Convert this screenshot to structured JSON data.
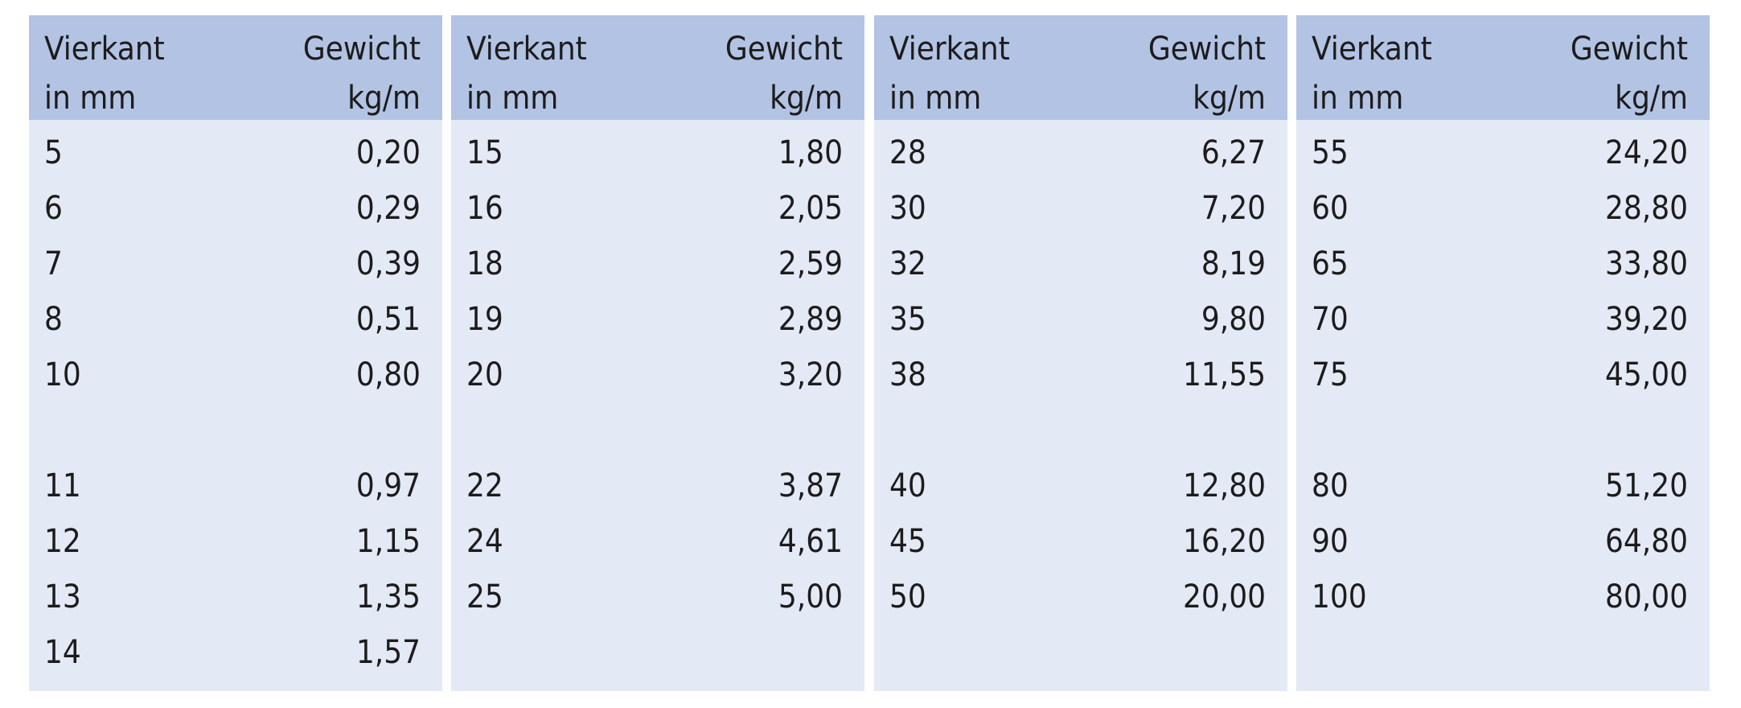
{
  "panels": [
    {
      "header": [
        [
          "Vierkant",
          "in mm"
        ],
        [
          "Gewicht",
          "kg/m"
        ]
      ],
      "groups": [
        [
          [
            "5",
            "0,20"
          ],
          [
            "6",
            "0,29"
          ],
          [
            "7",
            "0,39"
          ],
          [
            "8",
            "0,51"
          ],
          [
            "10",
            "0,80"
          ]
        ],
        [
          [
            "11",
            "0,97"
          ],
          [
            "12",
            "1,15"
          ],
          [
            "13",
            "1,35"
          ],
          [
            "14",
            "1,57"
          ]
        ]
      ]
    },
    {
      "header": [
        [
          "Vierkant",
          "in mm"
        ],
        [
          "Gewicht",
          "kg/m"
        ]
      ],
      "groups": [
        [
          [
            "15",
            "1,80"
          ],
          [
            "16",
            "2,05"
          ],
          [
            "18",
            "2,59"
          ],
          [
            "19",
            "2,89"
          ],
          [
            "20",
            "3,20"
          ]
        ],
        [
          [
            "22",
            "3,87"
          ],
          [
            "24",
            "4,61"
          ],
          [
            "25",
            "5,00"
          ]
        ]
      ]
    },
    {
      "header": [
        [
          "Vierkant",
          "in mm"
        ],
        [
          "Gewicht",
          "kg/m"
        ]
      ],
      "groups": [
        [
          [
            "28",
            "6,27"
          ],
          [
            "30",
            "7,20"
          ],
          [
            "32",
            "8,19"
          ],
          [
            "35",
            "9,80"
          ],
          [
            "38",
            "11,55"
          ]
        ],
        [
          [
            "40",
            "12,80"
          ],
          [
            "45",
            "16,20"
          ],
          [
            "50",
            "20,00"
          ]
        ]
      ]
    },
    {
      "header": [
        [
          "Vierkant",
          "in mm"
        ],
        [
          "Gewicht",
          "kg/m"
        ]
      ],
      "groups": [
        [
          [
            "55",
            "24,20"
          ],
          [
            "60",
            "28,80"
          ],
          [
            "65",
            "33,80"
          ],
          [
            "70",
            "39,20"
          ],
          [
            "75",
            "45,00"
          ]
        ],
        [
          [
            "80",
            "51,20"
          ],
          [
            "90",
            "64,80"
          ],
          [
            "100",
            "80,00"
          ]
        ]
      ]
    }
  ]
}
